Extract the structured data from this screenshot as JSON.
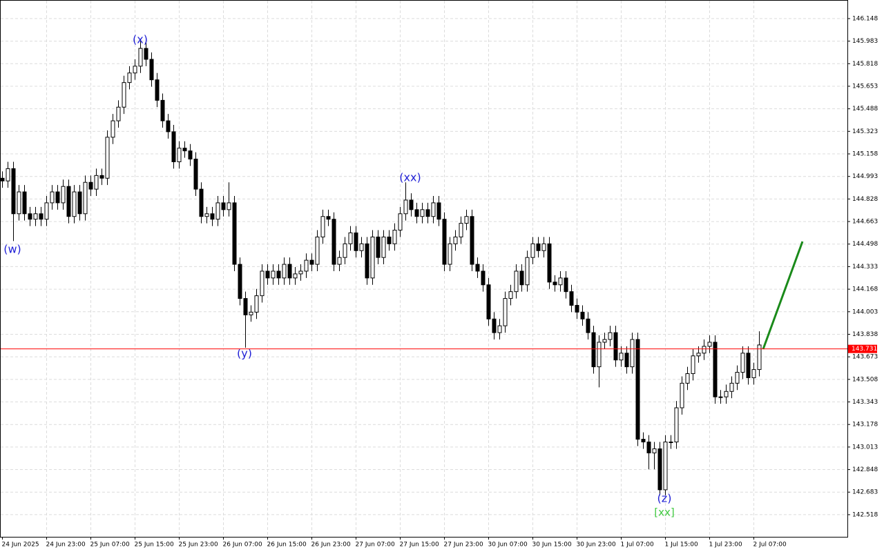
{
  "chart_data": {
    "type": "candlestick",
    "categories": [
      "24 Jun 2025",
      null,
      null,
      null,
      null,
      null,
      null,
      null,
      "24 Jun 23:00",
      null,
      null,
      null,
      null,
      null,
      null,
      null,
      "25 Jun 07:00",
      null,
      null,
      null,
      null,
      null,
      null,
      null,
      "25 Jun 15:00",
      null,
      null,
      null,
      null,
      null,
      null,
      null,
      "25 Jun 23:00",
      null,
      null,
      null,
      null,
      null,
      null,
      null,
      "26 Jun 07:00",
      null,
      null,
      null,
      null,
      null,
      null,
      null,
      "26 Jun 15:00",
      null,
      null,
      null,
      null,
      null,
      null,
      null,
      "26 Jun 23:00",
      null,
      null,
      null,
      null,
      null,
      null,
      null,
      "27 Jun 07:00",
      null,
      null,
      null,
      null,
      null,
      null,
      null,
      "27 Jun 15:00",
      null,
      null,
      null,
      null,
      null,
      null,
      null,
      "27 Jun 23:00",
      null,
      null,
      null,
      null,
      null,
      null,
      null,
      "30 Jun 07:00",
      null,
      null,
      null,
      null,
      null,
      null,
      null,
      "30 Jun 15:00",
      null,
      null,
      null,
      null,
      null,
      null,
      null,
      "30 Jun 23:00",
      null,
      null,
      null,
      null,
      null,
      null,
      null,
      "1 Jul 07:00",
      null,
      null,
      null,
      null,
      null,
      null,
      null,
      "1 Jul 15:00",
      null,
      null,
      null,
      null,
      null,
      null,
      null,
      "1 Jul 23:00",
      null,
      null,
      null,
      null,
      null,
      null,
      null,
      "2 Jul 07:00",
      null
    ],
    "open": [
      144.98,
      144.96,
      145.05,
      144.72,
      144.88,
      144.72,
      144.68,
      144.72,
      144.68,
      144.8,
      144.88,
      144.8,
      144.92,
      144.7,
      144.88,
      144.72,
      144.95,
      144.9,
      145.0,
      144.98,
      145.28,
      145.4,
      145.5,
      145.68,
      145.75,
      145.8,
      145.93,
      145.85,
      145.7,
      145.55,
      145.4,
      145.32,
      145.1,
      145.2,
      145.18,
      145.12,
      144.9,
      144.7,
      144.72,
      144.68,
      144.8,
      144.75,
      144.8,
      144.35,
      144.1,
      143.98,
      144.0,
      144.12,
      144.3,
      144.25,
      144.3,
      144.25,
      144.35,
      144.25,
      144.28,
      144.3,
      144.38,
      144.35,
      144.55,
      144.7,
      144.68,
      144.35,
      144.4,
      144.5,
      144.58,
      144.45,
      144.5,
      144.25,
      144.55,
      144.4,
      144.55,
      144.5,
      144.6,
      144.72,
      144.82,
      144.75,
      144.7,
      144.75,
      144.7,
      144.8,
      144.68,
      144.35,
      144.5,
      144.55,
      144.65,
      144.7,
      144.35,
      144.3,
      144.2,
      143.95,
      143.85,
      143.9,
      144.1,
      144.15,
      144.3,
      144.2,
      144.4,
      144.5,
      144.45,
      144.5,
      144.22,
      144.2,
      144.25,
      144.15,
      144.05,
      144.0,
      143.95,
      143.85,
      143.6,
      143.78,
      143.8,
      143.85,
      143.65,
      143.7,
      143.6,
      143.8,
      143.07,
      143.05,
      142.97,
      143.0,
      142.7,
      143.05,
      143.05,
      143.3,
      143.48,
      143.55,
      143.68,
      143.7,
      143.75,
      143.78,
      143.38,
      143.38,
      143.42,
      143.48,
      143.56,
      143.7,
      143.52,
      143.58
    ],
    "high": [
      145.03,
      145.1,
      145.1,
      144.93,
      144.93,
      144.77,
      144.77,
      144.77,
      144.85,
      144.93,
      144.93,
      144.97,
      144.97,
      144.93,
      144.93,
      145.0,
      145.0,
      145.05,
      145.05,
      145.33,
      145.45,
      145.55,
      145.73,
      145.8,
      145.85,
      146.0,
      145.98,
      145.9,
      145.75,
      145.6,
      145.45,
      145.37,
      145.25,
      145.25,
      145.23,
      145.17,
      144.95,
      144.77,
      144.77,
      144.85,
      144.85,
      144.95,
      144.85,
      144.4,
      144.15,
      144.05,
      144.17,
      144.35,
      144.35,
      144.35,
      144.35,
      144.4,
      144.4,
      144.33,
      144.35,
      144.43,
      144.43,
      144.6,
      144.75,
      144.75,
      144.73,
      144.45,
      144.55,
      144.63,
      144.63,
      144.55,
      144.55,
      144.6,
      144.6,
      144.6,
      144.6,
      144.65,
      144.77,
      144.95,
      144.87,
      144.8,
      144.8,
      144.8,
      144.85,
      144.85,
      144.73,
      144.55,
      144.6,
      144.7,
      144.75,
      144.75,
      144.4,
      144.35,
      144.25,
      144.0,
      143.95,
      144.15,
      144.2,
      144.35,
      144.35,
      144.45,
      144.55,
      144.55,
      144.55,
      144.55,
      144.27,
      144.3,
      144.3,
      144.2,
      144.1,
      144.05,
      144.0,
      143.9,
      143.83,
      143.85,
      143.9,
      143.9,
      143.75,
      143.75,
      143.85,
      143.85,
      143.12,
      143.1,
      143.05,
      143.05,
      143.1,
      143.1,
      143.35,
      143.53,
      143.6,
      143.73,
      143.75,
      143.8,
      143.83,
      143.83,
      143.43,
      143.47,
      143.53,
      143.61,
      143.75,
      143.75,
      143.63,
      143.86
    ],
    "low": [
      144.91,
      144.91,
      144.52,
      144.67,
      144.67,
      144.63,
      144.63,
      144.63,
      144.63,
      144.75,
      144.75,
      144.75,
      144.65,
      144.65,
      144.67,
      144.67,
      144.85,
      144.85,
      144.93,
      144.93,
      145.23,
      145.35,
      145.45,
      145.63,
      145.7,
      145.75,
      145.8,
      145.65,
      145.5,
      145.35,
      145.27,
      145.05,
      145.05,
      145.13,
      145.07,
      144.85,
      144.65,
      144.65,
      144.63,
      144.63,
      144.7,
      144.7,
      144.3,
      144.05,
      143.74,
      143.93,
      143.95,
      144.07,
      144.2,
      144.2,
      144.2,
      144.2,
      144.2,
      144.2,
      144.23,
      144.25,
      144.3,
      144.3,
      144.5,
      144.63,
      144.3,
      144.3,
      144.35,
      144.45,
      144.4,
      144.4,
      144.2,
      144.2,
      144.35,
      144.35,
      144.45,
      144.45,
      144.55,
      144.67,
      144.7,
      144.65,
      144.65,
      144.65,
      144.65,
      144.63,
      144.3,
      144.3,
      144.45,
      144.5,
      144.6,
      144.3,
      144.25,
      144.15,
      143.9,
      143.8,
      143.8,
      143.85,
      144.05,
      144.1,
      144.15,
      144.15,
      144.35,
      144.4,
      144.4,
      144.17,
      144.15,
      144.15,
      144.1,
      144.0,
      143.95,
      143.9,
      143.8,
      143.55,
      143.45,
      143.73,
      143.75,
      143.6,
      143.6,
      143.55,
      143.55,
      143.02,
      143.0,
      142.85,
      142.85,
      142.66,
      142.66,
      143.0,
      143.0,
      143.25,
      143.43,
      143.5,
      143.63,
      143.65,
      143.7,
      143.33,
      143.33,
      143.33,
      143.37,
      143.43,
      143.51,
      143.47,
      143.47,
      143.53
    ],
    "close": [
      144.96,
      145.05,
      144.72,
      144.88,
      144.72,
      144.68,
      144.72,
      144.68,
      144.8,
      144.88,
      144.8,
      144.92,
      144.7,
      144.88,
      144.72,
      144.95,
      144.9,
      145.0,
      144.98,
      145.28,
      145.4,
      145.5,
      145.68,
      145.75,
      145.8,
      145.93,
      145.85,
      145.7,
      145.55,
      145.4,
      145.32,
      145.1,
      145.2,
      145.18,
      145.12,
      144.9,
      144.7,
      144.72,
      144.68,
      144.8,
      144.75,
      144.8,
      144.35,
      144.1,
      143.98,
      144.0,
      144.12,
      144.3,
      144.25,
      144.3,
      144.25,
      144.35,
      144.25,
      144.28,
      144.3,
      144.38,
      144.35,
      144.55,
      144.7,
      144.68,
      144.35,
      144.4,
      144.5,
      144.58,
      144.45,
      144.5,
      144.25,
      144.55,
      144.4,
      144.55,
      144.5,
      144.6,
      144.72,
      144.82,
      144.75,
      144.7,
      144.75,
      144.7,
      144.8,
      144.68,
      144.35,
      144.5,
      144.55,
      144.65,
      144.7,
      144.35,
      144.3,
      144.2,
      143.95,
      143.85,
      143.9,
      144.1,
      144.15,
      144.3,
      144.2,
      144.4,
      144.5,
      144.45,
      144.5,
      144.22,
      144.2,
      144.25,
      144.15,
      144.05,
      144.0,
      143.95,
      143.85,
      143.6,
      143.78,
      143.8,
      143.85,
      143.65,
      143.7,
      143.6,
      143.8,
      143.07,
      143.05,
      142.97,
      143.0,
      142.7,
      143.05,
      143.05,
      143.3,
      143.48,
      143.55,
      143.68,
      143.7,
      143.75,
      143.78,
      143.38,
      143.38,
      143.42,
      143.48,
      143.56,
      143.7,
      143.52,
      143.58,
      143.76
    ],
    "up_color": "#ffffff",
    "down_color": "#000000",
    "current_price": 143.731,
    "current_price_color": "#ff0000",
    "ylim": [
      142.356,
      146.284
    ],
    "yticks": [
      146.148,
      145.983,
      145.818,
      145.653,
      145.488,
      145.323,
      145.158,
      144.993,
      144.828,
      144.663,
      144.498,
      144.333,
      144.168,
      144.003,
      143.838,
      143.673,
      143.508,
      143.343,
      143.178,
      143.013,
      142.848,
      142.683,
      142.518
    ],
    "grid": true,
    "annotations": [
      "(w)",
      "(x)",
      "(y)",
      "(xx)",
      "(z)",
      "[xx]"
    ]
  }
}
